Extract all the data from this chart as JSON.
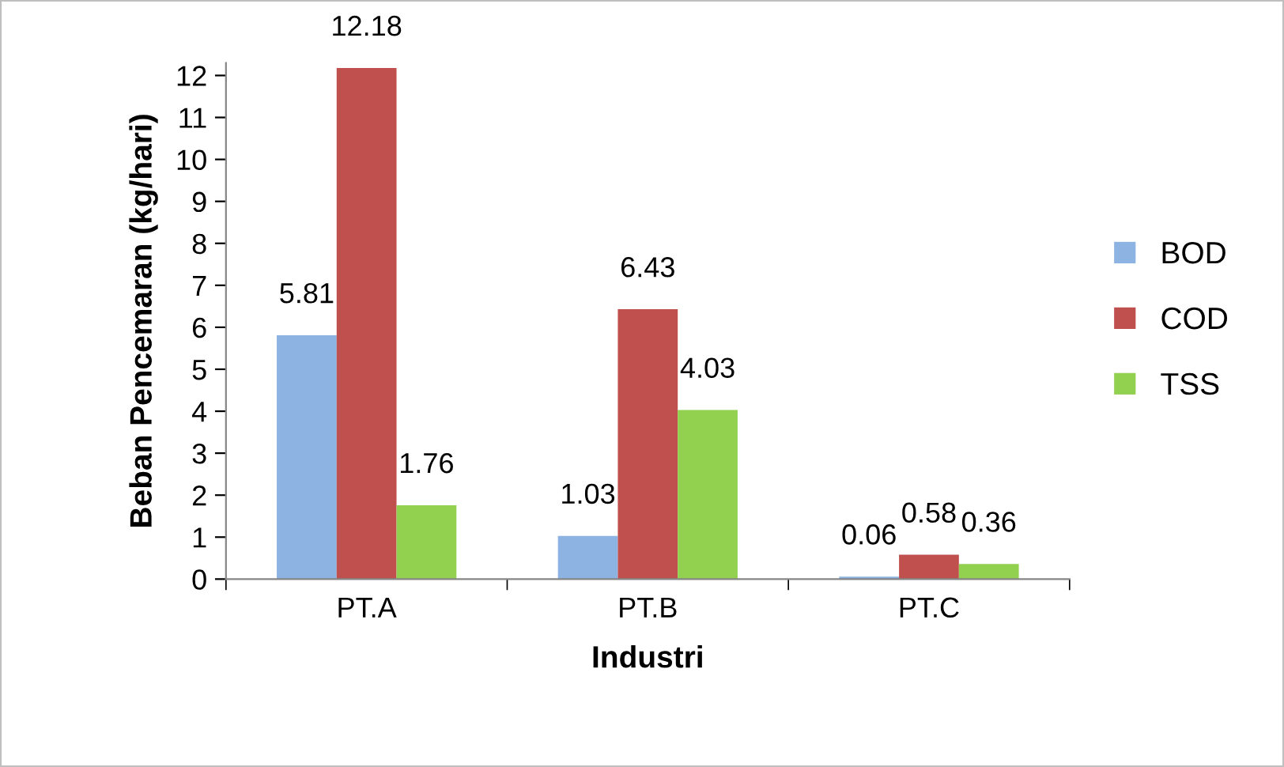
{
  "chart_data": {
    "type": "bar",
    "xlabel": "Industri",
    "ylabel": "Beban Pencemaran (kg/hari)",
    "categories": [
      "PT.A",
      "PT.B",
      "PT.C"
    ],
    "series": [
      {
        "name": "BOD",
        "color": "#8db3e2",
        "values": [
          5.81,
          1.03,
          0.06
        ]
      },
      {
        "name": "COD",
        "color": "#c0504d",
        "values": [
          12.18,
          6.43,
          0.58
        ]
      },
      {
        "name": "TSS",
        "color": "#92d050",
        "values": [
          1.76,
          4.03,
          0.36
        ]
      }
    ],
    "ylim": [
      0,
      12.3
    ],
    "yticks": [
      0,
      1,
      2,
      3,
      4,
      5,
      6,
      7,
      8,
      9,
      10,
      11,
      12
    ],
    "grid": false,
    "legend": "right",
    "data_labels": true
  }
}
